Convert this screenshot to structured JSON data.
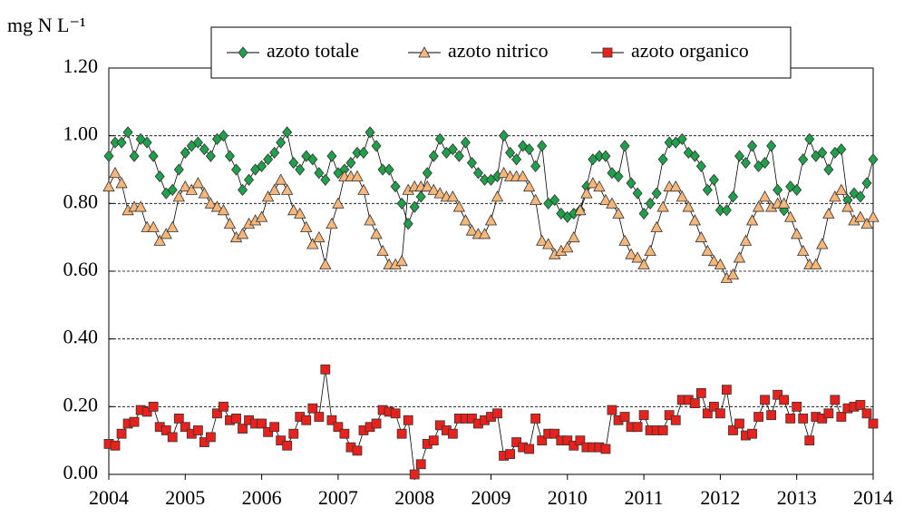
{
  "chart_data": {
    "type": "line",
    "y_label": "mg N L⁻¹",
    "x": [
      2004,
      2004.083,
      2004.167,
      2004.25,
      2004.333,
      2004.417,
      2004.5,
      2004.583,
      2004.667,
      2004.75,
      2004.833,
      2004.917,
      2005,
      2005.083,
      2005.167,
      2005.25,
      2005.333,
      2005.417,
      2005.5,
      2005.583,
      2005.667,
      2005.75,
      2005.833,
      2005.917,
      2006,
      2006.083,
      2006.167,
      2006.25,
      2006.333,
      2006.417,
      2006.5,
      2006.583,
      2006.667,
      2006.75,
      2006.833,
      2006.917,
      2007,
      2007.083,
      2007.167,
      2007.25,
      2007.333,
      2007.417,
      2007.5,
      2007.583,
      2007.667,
      2007.75,
      2007.833,
      2007.917,
      2008,
      2008.083,
      2008.167,
      2008.25,
      2008.333,
      2008.417,
      2008.5,
      2008.583,
      2008.667,
      2008.75,
      2008.833,
      2008.917,
      2009,
      2009.083,
      2009.167,
      2009.25,
      2009.333,
      2009.417,
      2009.5,
      2009.583,
      2009.667,
      2009.75,
      2009.833,
      2009.917,
      2010,
      2010.083,
      2010.167,
      2010.25,
      2010.333,
      2010.417,
      2010.5,
      2010.583,
      2010.667,
      2010.75,
      2010.833,
      2010.917,
      2011,
      2011.083,
      2011.167,
      2011.25,
      2011.333,
      2011.417,
      2011.5,
      2011.583,
      2011.667,
      2011.75,
      2011.833,
      2011.917,
      2012,
      2012.083,
      2012.167,
      2012.25,
      2012.333,
      2012.417,
      2012.5,
      2012.583,
      2012.667,
      2012.75,
      2012.833,
      2012.917,
      2013,
      2013.083,
      2013.167,
      2013.25,
      2013.333,
      2013.417,
      2013.5,
      2013.583,
      2013.667,
      2013.75,
      2013.833,
      2013.917,
      2014
    ],
    "series": [
      {
        "name": "azoto totale",
        "color": "#1fa04a",
        "marker": "diamond",
        "values": [
          0.94,
          0.98,
          0.98,
          1.01,
          0.94,
          0.99,
          0.98,
          0.94,
          0.88,
          0.83,
          0.84,
          0.9,
          0.95,
          0.97,
          0.98,
          0.96,
          0.94,
          0.99,
          1.0,
          0.94,
          0.9,
          0.84,
          0.87,
          0.9,
          0.91,
          0.93,
          0.95,
          0.98,
          1.01,
          0.92,
          0.9,
          0.94,
          0.93,
          0.89,
          0.87,
          0.94,
          0.89,
          0.9,
          0.92,
          0.95,
          0.95,
          1.01,
          0.97,
          0.9,
          0.9,
          0.85,
          0.8,
          0.74,
          0.79,
          0.82,
          0.89,
          0.94,
          0.99,
          0.95,
          0.96,
          0.94,
          0.98,
          0.92,
          0.89,
          0.87,
          0.87,
          0.88,
          1.0,
          0.95,
          0.93,
          0.97,
          0.96,
          0.91,
          0.97,
          0.8,
          0.81,
          0.77,
          0.76,
          0.77,
          0.78,
          0.85,
          0.93,
          0.94,
          0.94,
          0.89,
          0.88,
          0.97,
          0.86,
          0.83,
          0.77,
          0.8,
          0.83,
          0.93,
          0.98,
          0.98,
          0.99,
          0.95,
          0.94,
          0.91,
          0.84,
          0.87,
          0.78,
          0.78,
          0.82,
          0.94,
          0.92,
          0.97,
          0.91,
          0.92,
          0.97,
          0.84,
          0.78,
          0.85,
          0.84,
          0.93,
          0.99,
          0.94,
          0.95,
          0.9,
          0.95,
          0.96,
          0.81,
          0.83,
          0.82,
          0.86,
          0.93
        ]
      },
      {
        "name": "azoto nitrico",
        "color": "#f7b77a",
        "marker": "triangle",
        "values": [
          0.85,
          0.89,
          0.86,
          0.78,
          0.79,
          0.79,
          0.73,
          0.73,
          0.69,
          0.71,
          0.73,
          0.82,
          0.85,
          0.84,
          0.86,
          0.83,
          0.8,
          0.79,
          0.78,
          0.74,
          0.7,
          0.71,
          0.74,
          0.75,
          0.76,
          0.82,
          0.84,
          0.87,
          0.84,
          0.78,
          0.77,
          0.73,
          0.68,
          0.7,
          0.62,
          0.74,
          0.8,
          0.88,
          0.88,
          0.88,
          0.84,
          0.75,
          0.71,
          0.66,
          0.62,
          0.62,
          0.63,
          0.84,
          0.85,
          0.85,
          0.85,
          0.84,
          0.83,
          0.82,
          0.82,
          0.79,
          0.75,
          0.72,
          0.71,
          0.71,
          0.75,
          0.82,
          0.89,
          0.88,
          0.88,
          0.88,
          0.85,
          0.81,
          0.69,
          0.68,
          0.65,
          0.66,
          0.67,
          0.7,
          0.78,
          0.83,
          0.86,
          0.85,
          0.81,
          0.8,
          0.77,
          0.69,
          0.65,
          0.64,
          0.62,
          0.66,
          0.73,
          0.79,
          0.85,
          0.85,
          0.82,
          0.79,
          0.75,
          0.7,
          0.66,
          0.63,
          0.62,
          0.58,
          0.59,
          0.64,
          0.69,
          0.75,
          0.79,
          0.82,
          0.79,
          0.8,
          0.8,
          0.76,
          0.71,
          0.66,
          0.62,
          0.62,
          0.68,
          0.77,
          0.82,
          0.84,
          0.79,
          0.75,
          0.76,
          0.74,
          0.76
        ]
      },
      {
        "name": "azoto organico",
        "color": "#e8211d",
        "marker": "square",
        "values": [
          0.09,
          0.085,
          0.12,
          0.15,
          0.155,
          0.19,
          0.185,
          0.2,
          0.14,
          0.13,
          0.11,
          0.165,
          0.14,
          0.12,
          0.13,
          0.095,
          0.11,
          0.18,
          0.2,
          0.16,
          0.165,
          0.135,
          0.16,
          0.15,
          0.15,
          0.125,
          0.14,
          0.1,
          0.085,
          0.12,
          0.17,
          0.16,
          0.195,
          0.17,
          0.31,
          0.16,
          0.14,
          0.12,
          0.08,
          0.07,
          0.13,
          0.14,
          0.15,
          0.19,
          0.185,
          0.18,
          0.12,
          0.16,
          0.0,
          0.03,
          0.09,
          0.1,
          0.145,
          0.13,
          0.12,
          0.165,
          0.165,
          0.165,
          0.15,
          0.16,
          0.17,
          0.18,
          0.055,
          0.06,
          0.095,
          0.08,
          0.075,
          0.165,
          0.1,
          0.12,
          0.12,
          0.1,
          0.1,
          0.085,
          0.1,
          0.08,
          0.08,
          0.08,
          0.075,
          0.19,
          0.16,
          0.17,
          0.14,
          0.14,
          0.175,
          0.13,
          0.13,
          0.13,
          0.175,
          0.16,
          0.22,
          0.22,
          0.21,
          0.24,
          0.18,
          0.2,
          0.18,
          0.25,
          0.13,
          0.15,
          0.115,
          0.12,
          0.17,
          0.22,
          0.175,
          0.235,
          0.22,
          0.165,
          0.2,
          0.165,
          0.1,
          0.17,
          0.165,
          0.18,
          0.22,
          0.17,
          0.195,
          0.2,
          0.205,
          0.18,
          0.15
        ]
      }
    ],
    "xlim": [
      2004,
      2014
    ],
    "xticks": [
      2004,
      2005,
      2006,
      2007,
      2008,
      2009,
      2010,
      2011,
      2012,
      2013,
      2014
    ],
    "ylim": [
      0,
      1.2
    ],
    "yticks": [
      {
        "value": 0,
        "label": "0.00"
      },
      {
        "value": 0.2,
        "label": "0.20"
      },
      {
        "value": 0.4,
        "label": "0.40"
      },
      {
        "value": 0.6,
        "label": "0.60"
      },
      {
        "value": 0.8,
        "label": "0.80"
      },
      {
        "value": 1.0,
        "label": "1.00"
      },
      {
        "value": 1.2,
        "label": "1.20"
      }
    ],
    "grid": true,
    "legend": "top"
  }
}
